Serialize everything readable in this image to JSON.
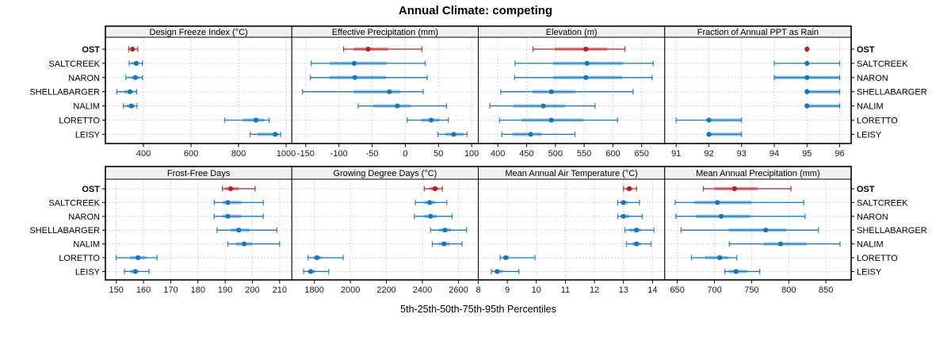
{
  "title": "Annual Climate: competing",
  "xlabel": "5th-25th-50th-75th-95th Percentiles",
  "sites": [
    "OST",
    "SALTCREEK",
    "NARON",
    "SHELLABARGER",
    "NALIM",
    "LORETTO",
    "LEISY"
  ],
  "highlight_site": "OST",
  "colors": {
    "highlight": "#b22222",
    "normal": "#1777b5",
    "strip_bg": "#f0f0f0",
    "grid": "#c9c9c9",
    "border": "#000000"
  },
  "chart_data": {
    "type": "dot-whisker-trellis",
    "layout": "2 rows x 4 columns",
    "percentile_labels": [
      "5th",
      "25th",
      "50th",
      "75th",
      "95th"
    ],
    "legend_position": "none",
    "grid": "dotted",
    "panels": [
      {
        "title": "Design Freeze Index (°C)",
        "ticks": [
          400,
          600,
          800,
          1000
        ],
        "xlim": [
          240,
          1024
        ],
        "series": {
          "OST": [
            338,
            346,
            354,
            363,
            376
          ],
          "SALTCREEK": [
            340,
            351,
            370,
            381,
            396
          ],
          "NARON": [
            326,
            349,
            366,
            383,
            396
          ],
          "SHELLABARGER": [
            288,
            318,
            343,
            357,
            371
          ],
          "NALIM": [
            316,
            330,
            349,
            363,
            373
          ],
          "LORETTO": [
            742,
            818,
            873,
            907,
            929
          ],
          "LEISY": [
            849,
            879,
            954,
            968,
            977
          ]
        }
      },
      {
        "title": "Effective Precipitation (mm)",
        "ticks": [
          -150,
          -100,
          -50,
          0,
          50,
          100
        ],
        "xlim": [
          -171,
          110
        ],
        "series": {
          "OST": [
            -93,
            -78,
            -56,
            -26,
            25
          ],
          "SALTCREEK": [
            -142,
            -114,
            -77,
            -28,
            30
          ],
          "NARON": [
            -143,
            -114,
            -76,
            -29,
            33
          ],
          "SHELLABARGER": [
            -155,
            -78,
            -24,
            -8,
            27
          ],
          "NALIM": [
            -71,
            -48,
            -12,
            8,
            62
          ],
          "LORETTO": [
            3,
            24,
            39,
            52,
            65
          ],
          "LEISY": [
            49,
            60,
            73,
            88,
            93
          ]
        }
      },
      {
        "title": "Elevation (m)",
        "ticks": [
          400,
          450,
          500,
          550,
          600,
          650
        ],
        "xlim": [
          366,
          690
        ],
        "series": {
          "OST": [
            461,
            499,
            553,
            590,
            621
          ],
          "SALTCREEK": [
            430,
            496,
            555,
            618,
            670
          ],
          "NARON": [
            429,
            496,
            553,
            616,
            668
          ],
          "SHELLABARGER": [
            405,
            460,
            493,
            535,
            635
          ],
          "NALIM": [
            386,
            427,
            479,
            517,
            569
          ],
          "LORETTO": [
            403,
            441,
            493,
            549,
            608
          ],
          "LEISY": [
            407,
            425,
            457,
            476,
            534
          ]
        }
      },
      {
        "title": "Fraction of Annual PPT as Rain",
        "ticks": [
          91,
          92,
          93,
          94,
          95,
          96
        ],
        "xlim": [
          90.65,
          96.35
        ],
        "series": {
          "OST": [
            95,
            95,
            95,
            95,
            95
          ],
          "SALTCREEK": [
            94,
            95,
            95,
            95,
            96
          ],
          "NARON": [
            94,
            94,
            95,
            96,
            96
          ],
          "SHELLABARGER": [
            95,
            95,
            95,
            96,
            96
          ],
          "NALIM": [
            95,
            95,
            95,
            96,
            96
          ],
          "LORETTO": [
            91,
            92,
            92,
            93,
            93
          ],
          "LEISY": [
            92,
            92,
            92,
            93,
            93
          ]
        }
      },
      {
        "title": "Frost-Free Days",
        "ticks": [
          150,
          160,
          170,
          180,
          190,
          200,
          210
        ],
        "xlim": [
          146,
          214.5
        ],
        "series": {
          "OST": [
            189,
            190,
            192,
            195,
            201
          ],
          "SALTCREEK": [
            186,
            189,
            191,
            196,
            204
          ],
          "NARON": [
            186,
            189,
            191,
            196,
            204
          ],
          "SHELLABARGER": [
            187,
            192,
            195,
            199,
            209
          ],
          "NALIM": [
            191,
            194,
            197,
            200,
            210
          ],
          "LORETTO": [
            150,
            155,
            158,
            161,
            165
          ],
          "LEISY": [
            153,
            155,
            157,
            158,
            162
          ]
        }
      },
      {
        "title": "Growing Degree Days (°C)",
        "ticks": [
          1800,
          2000,
          2200,
          2400,
          2600
        ],
        "xlim": [
          1675,
          2710
        ],
        "series": {
          "OST": [
            2410,
            2440,
            2470,
            2490,
            2510
          ],
          "SALTCREEK": [
            2360,
            2410,
            2440,
            2470,
            2535
          ],
          "NARON": [
            2355,
            2410,
            2445,
            2480,
            2565
          ],
          "SHELLABARGER": [
            2445,
            2490,
            2525,
            2560,
            2645
          ],
          "NALIM": [
            2455,
            2490,
            2520,
            2550,
            2620
          ],
          "LORETTO": [
            1765,
            1795,
            1815,
            1840,
            1960
          ],
          "LEISY": [
            1740,
            1765,
            1780,
            1805,
            1880
          ]
        }
      },
      {
        "title": "Mean Annual Air Temperature (°C)",
        "ticks": [
          8,
          9,
          10,
          11,
          12,
          13,
          14
        ],
        "xlim": [
          8.0,
          14.42
        ],
        "series": {
          "OST": [
            13.0,
            13.1,
            13.2,
            13.3,
            13.45
          ],
          "SALTCREEK": [
            12.8,
            12.9,
            13.0,
            13.15,
            13.55
          ],
          "NARON": [
            12.8,
            12.9,
            13.0,
            13.2,
            13.65
          ],
          "SHELLABARGER": [
            13.05,
            13.2,
            13.45,
            13.6,
            14.05
          ],
          "NALIM": [
            13.1,
            13.3,
            13.45,
            13.6,
            13.95
          ],
          "LORETTO": [
            8.75,
            8.85,
            8.95,
            9.05,
            9.95
          ],
          "LEISY": [
            8.45,
            8.55,
            8.65,
            8.85,
            9.4
          ]
        }
      },
      {
        "title": "Mean Annual Precipitation (mm)",
        "ticks": [
          650,
          700,
          750,
          800,
          850
        ],
        "xlim": [
          633,
          884
        ],
        "series": {
          "OST": [
            685,
            700,
            727,
            758,
            803
          ],
          "SALTCREEK": [
            647,
            673,
            704,
            750,
            820
          ],
          "NARON": [
            648,
            675,
            709,
            748,
            822
          ],
          "SHELLABARGER": [
            655,
            719,
            769,
            797,
            840
          ],
          "NALIM": [
            720,
            766,
            789,
            824,
            869
          ],
          "LORETTO": [
            669,
            687,
            707,
            719,
            730
          ],
          "LEISY": [
            714,
            719,
            729,
            744,
            761
          ]
        }
      }
    ]
  }
}
